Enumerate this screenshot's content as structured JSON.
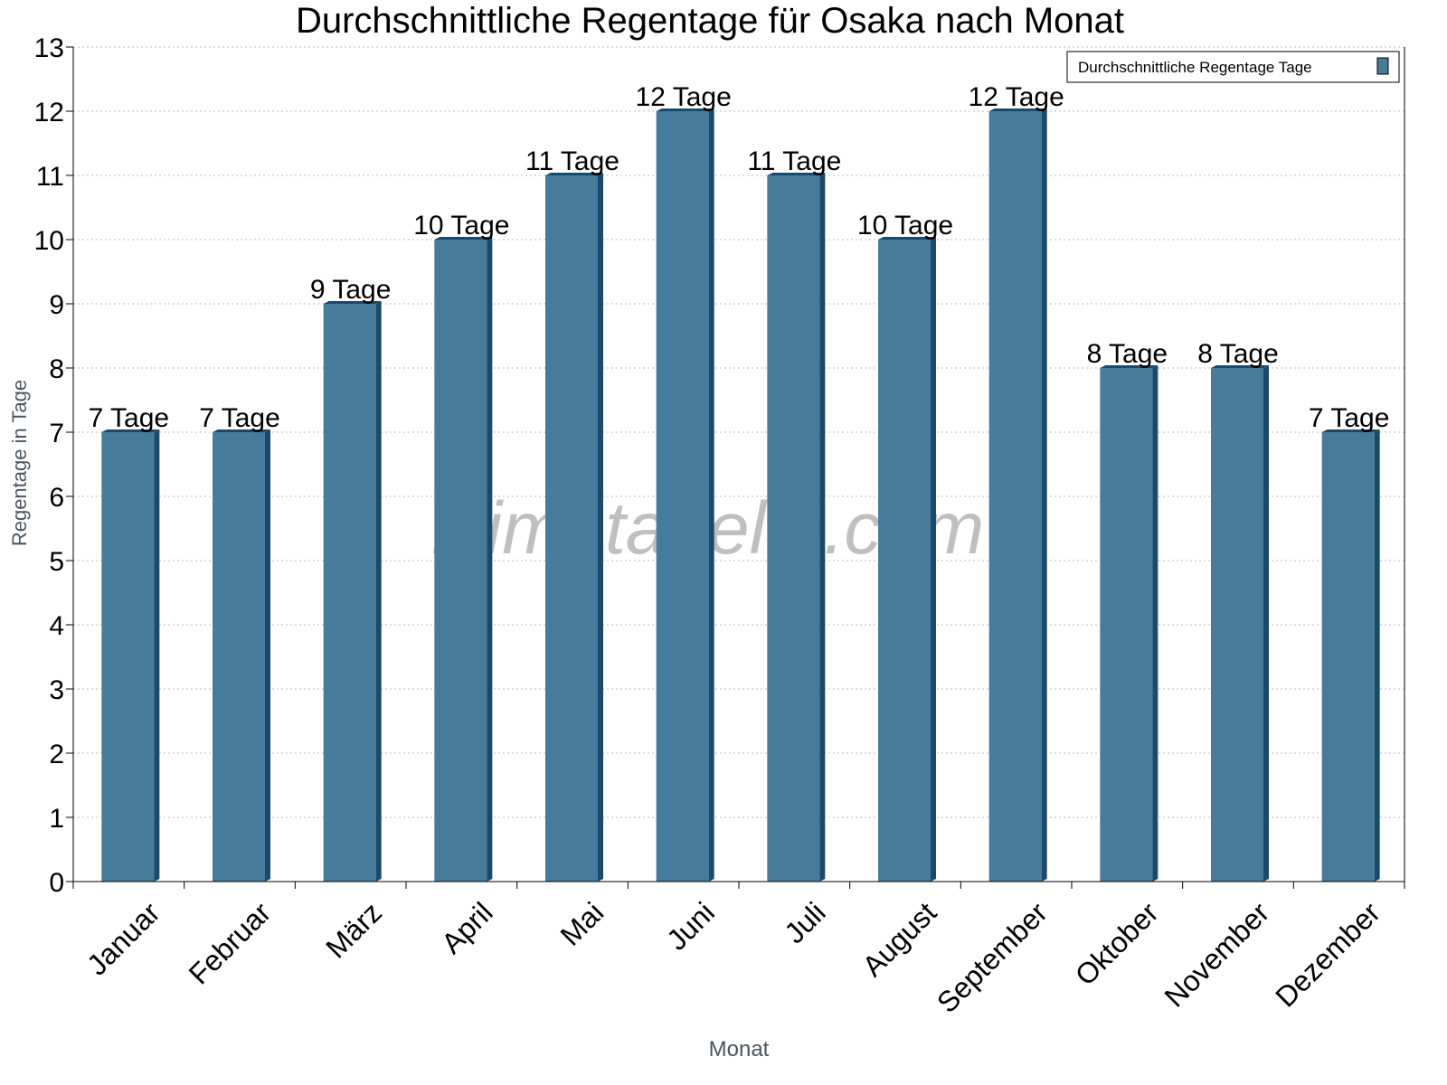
{
  "chart_data": {
    "type": "bar",
    "title": "Durchschnittliche Regentage für Osaka nach Monat",
    "xlabel": "Monat",
    "ylabel": "Regentage in Tage",
    "categories": [
      "Januar",
      "Februar",
      "März",
      "April",
      "Mai",
      "Juni",
      "Juli",
      "August",
      "September",
      "Oktober",
      "November",
      "Dezember"
    ],
    "series": [
      {
        "name": "Durchschnittliche Regentage Tage",
        "values": [
          7,
          7,
          9,
          10,
          11,
          12,
          11,
          10,
          12,
          8,
          8,
          7
        ],
        "color": "#467b9c",
        "side_color": "#1a4a6b"
      }
    ],
    "data_label_suffix": " Tage",
    "ylim": [
      0,
      13
    ],
    "yticks": [
      0,
      1,
      2,
      3,
      4,
      5,
      6,
      7,
      8,
      9,
      10,
      11,
      12,
      13
    ],
    "grid": true,
    "legend": "top-right",
    "watermark": "klimatabelle.com"
  }
}
